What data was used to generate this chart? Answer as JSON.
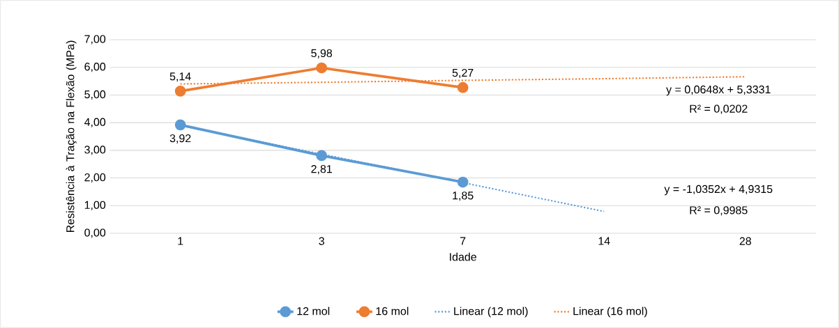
{
  "chart_data": {
    "type": "line",
    "xlabel": "Idade",
    "ylabel": "Resistência à Tração na Flexão (MPa)",
    "categories": [
      "1",
      "3",
      "7",
      "14",
      "28"
    ],
    "series": [
      {
        "name": "12 mol",
        "color": "#5b9bd5",
        "marker": "circle",
        "line_style": "solid",
        "values": [
          3.92,
          2.81,
          1.85,
          null,
          null
        ],
        "value_labels": [
          "3,92",
          "2,81",
          "1,85",
          null,
          null
        ]
      },
      {
        "name": "16 mol",
        "color": "#ed7d31",
        "marker": "circle",
        "line_style": "solid",
        "values": [
          5.14,
          5.98,
          5.27,
          null,
          null
        ],
        "value_labels": [
          "5,14",
          "5,98",
          "5,27",
          null,
          null
        ]
      },
      {
        "name": "Linear (12 mol)",
        "color": "#5b9bd5",
        "marker": "none",
        "line_style": "dotted",
        "values": [
          3.9,
          2.86,
          1.83,
          0.79,
          null
        ]
      },
      {
        "name": "Linear (16 mol)",
        "color": "#ed7d31",
        "marker": "none",
        "line_style": "dotted",
        "values": [
          5.4,
          5.46,
          5.53,
          5.59,
          5.66
        ]
      }
    ],
    "ylim": [
      0,
      7
    ],
    "yticks": [
      {
        "value": 0,
        "label": "0,00"
      },
      {
        "value": 1,
        "label": "1,00"
      },
      {
        "value": 2,
        "label": "2,00"
      },
      {
        "value": 3,
        "label": "3,00"
      },
      {
        "value": 4,
        "label": "4,00"
      },
      {
        "value": 5,
        "label": "5,00"
      },
      {
        "value": 6,
        "label": "6,00"
      },
      {
        "value": 7,
        "label": "7,00"
      }
    ],
    "grid": "y",
    "legend": "bottom",
    "annotations": [
      "y = 0,0648x + 5,3331",
      "R² = 0,0202",
      "y = -1,0352x + 4,9315",
      "R² = 0,9985"
    ]
  }
}
